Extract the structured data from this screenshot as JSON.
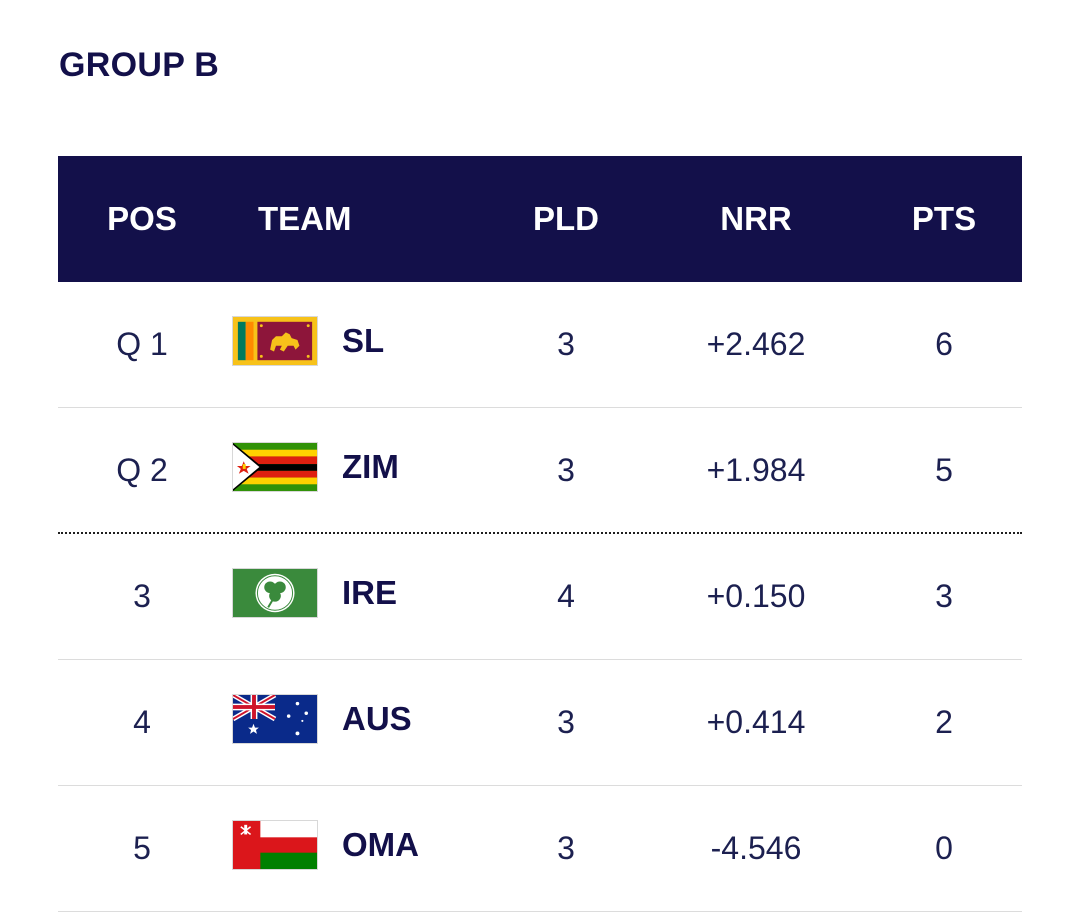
{
  "title": "GROUP B",
  "columns": {
    "pos": "POS",
    "team": "TEAM",
    "pld": "PLD",
    "nrr": "NRR",
    "pts": "PTS"
  },
  "rows": [
    {
      "pos": "Q 1",
      "team": "SL",
      "flag_icon": "sri-lanka-flag-icon",
      "pld": "3",
      "nrr": "+2.462",
      "pts": "6"
    },
    {
      "pos": "Q 2",
      "team": "ZIM",
      "flag_icon": "zimbabwe-flag-icon",
      "pld": "3",
      "nrr": "+1.984",
      "pts": "5"
    },
    {
      "pos": "3",
      "team": "IRE",
      "flag_icon": "ireland-flag-icon",
      "pld": "4",
      "nrr": "+0.150",
      "pts": "3"
    },
    {
      "pos": "4",
      "team": "AUS",
      "flag_icon": "australia-flag-icon",
      "pld": "3",
      "nrr": "+0.414",
      "pts": "2"
    },
    {
      "pos": "5",
      "team": "OMA",
      "flag_icon": "oman-flag-icon",
      "pld": "3",
      "nrr": "-4.546",
      "pts": "0"
    }
  ],
  "colors": {
    "header_bg": "#13104a",
    "text": "#1c2050"
  }
}
